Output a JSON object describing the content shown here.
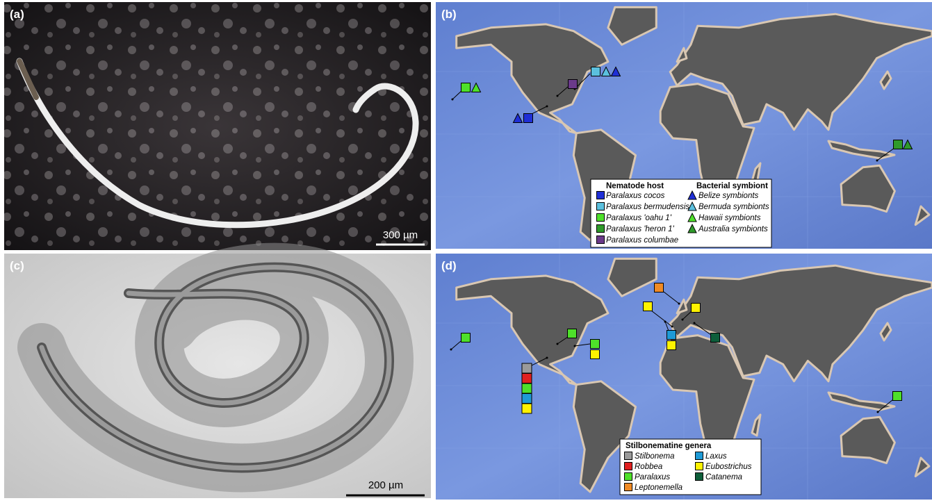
{
  "panels": [
    {
      "label": "(a)",
      "scale_bar": "300 µm"
    },
    {
      "label": "(b)",
      "legend": {
        "host_title": "Nematode host",
        "hosts": [
          {
            "name": "Paralaxus cocos",
            "color": "#1f2fd6"
          },
          {
            "name": "Paralaxus bermudensis",
            "color": "#5bc0de"
          },
          {
            "name": "Paralaxus 'oahu 1'",
            "color": "#4ee02a"
          },
          {
            "name": "Paralaxus 'heron 1'",
            "color": "#2f9a2a"
          },
          {
            "name": "Paralaxus columbae",
            "color": "#6b3a8a"
          }
        ],
        "symbiont_title": "Bacterial symbiont",
        "symbionts": [
          {
            "name": "Belize symbionts",
            "color": "#1f2fd6"
          },
          {
            "name": "Bermuda symbionts",
            "color": "#5bc0de"
          },
          {
            "name": "Hawaii symbionts",
            "color": "#4ee02a"
          },
          {
            "name": "Australia symbionts",
            "color": "#2f9a2a"
          }
        ]
      }
    },
    {
      "label": "(c)",
      "scale_bar": "200 µm"
    },
    {
      "label": "(d)",
      "legend": {
        "title": "Stilbonematine genera",
        "genera": [
          {
            "name": "Stilbonema",
            "color": "#9a9a9a"
          },
          {
            "name": "Robbea",
            "color": "#e02020"
          },
          {
            "name": "Paralaxus",
            "color": "#4ee02a"
          },
          {
            "name": "Leptonemella",
            "color": "#f08a24"
          },
          {
            "name": "Laxus",
            "color": "#1e9ad6"
          },
          {
            "name": "Eubostrichus",
            "color": "#fff200"
          },
          {
            "name": "Catanema",
            "color": "#0d5e3a"
          }
        ]
      }
    }
  ]
}
